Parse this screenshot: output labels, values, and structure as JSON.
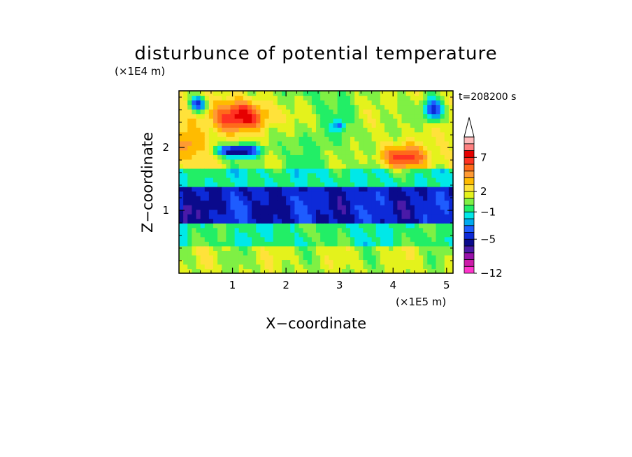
{
  "chart_data": {
    "type": "heatmap",
    "title": "disturbunce of potential temperature",
    "time_label": "t=208200 s",
    "xlabel": "X−coordinate",
    "ylabel": "Z−coordinate",
    "x_unit_label": "(×1E5 m)",
    "y_unit_label": "(×1E4 m)",
    "xlim": [
      0,
      5.12
    ],
    "ylim": [
      0,
      2.9
    ],
    "x_ticks": [
      1,
      2,
      3,
      4,
      5
    ],
    "x_tick_labels": [
      "1",
      "2",
      "3",
      "4",
      "5"
    ],
    "y_ticks": [
      1,
      2
    ],
    "y_tick_labels": [
      "1",
      "2"
    ],
    "colorbar": {
      "levels": [
        -12,
        -10,
        -8,
        -7,
        -6,
        -5,
        -4,
        -3,
        -2,
        -1,
        0,
        1,
        2,
        3,
        4,
        5,
        6,
        7,
        8,
        9
      ],
      "colors": [
        "#ff33cc",
        "#cc1aa8",
        "#9911aa",
        "#4a1aa8",
        "#0a0a8c",
        "#0d2ad8",
        "#1e5cff",
        "#00aaee",
        "#00e8e8",
        "#22ee66",
        "#7ff044",
        "#e4f21c",
        "#ffe23a",
        "#ffbb00",
        "#ff9a33",
        "#ff6a1a",
        "#ff3322",
        "#e60000",
        "#ff8080",
        "#ffbbbb"
      ],
      "labeled_levels": [
        -12,
        -5,
        -1,
        2,
        7
      ],
      "tick_labels": [
        "−12",
        "−5",
        "−1",
        "2",
        "7"
      ],
      "extend": "max",
      "placement": "right"
    },
    "field": {
      "grid": "64x40",
      "description_of_structure": [
        {
          "z_range": [
            0.0,
            0.45
          ],
          "typical_value": 1,
          "note": "yellow/green band near surface"
        },
        {
          "z_range": [
            0.45,
            0.8
          ],
          "typical_value": -1,
          "note": "green/cyan layer"
        },
        {
          "z_range": [
            0.8,
            1.35
          ],
          "typical_value": -5,
          "note": "strong blue cold layer"
        },
        {
          "z_range": [
            1.35,
            1.7
          ],
          "typical_value": -1,
          "note": "cyan transition"
        },
        {
          "z_range": [
            1.7,
            2.9
          ],
          "typical_value": 1,
          "note": "yellow/orange warm upper region"
        }
      ],
      "features": [
        {
          "x": 1.2,
          "z": 2.5,
          "value": 6,
          "kind": "warm max"
        },
        {
          "x": 4.2,
          "z": 1.85,
          "value": 5,
          "kind": "warm max"
        },
        {
          "x": 1.1,
          "z": 1.95,
          "value": -6,
          "kind": "cold min"
        },
        {
          "x": 4.75,
          "z": 2.6,
          "value": -6,
          "kind": "cold min"
        },
        {
          "x": 0.35,
          "z": 2.7,
          "value": -6,
          "kind": "cold min"
        }
      ]
    }
  }
}
